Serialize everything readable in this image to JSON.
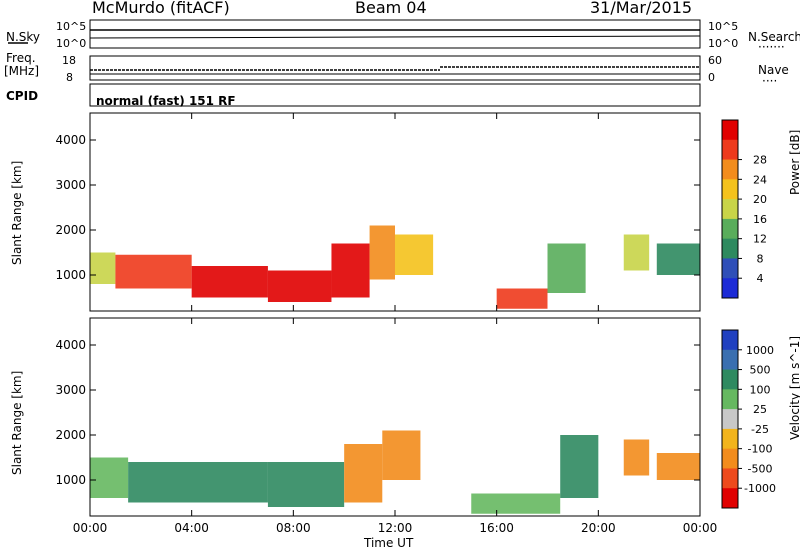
{
  "header": {
    "station": "McMurdo (fitACF)",
    "beam": "Beam 04",
    "date": "31/Mar/2015"
  },
  "status_panels": {
    "nsky_label": "N.Sky",
    "nsearch_label": "N.Search",
    "nsearch_dots": "·······",
    "freq_label": "Freq.",
    "freq_unit": "[MHz]",
    "nave_label": "Nave",
    "nave_dots": "····",
    "cpid_label": "CPID",
    "cpid_text": "normal (fast) 151 RF",
    "noise_ticks_left": [
      "10^5",
      "10^0"
    ],
    "noise_ticks_right": [
      "10^5",
      "10^0"
    ],
    "freq_ticks": [
      "18",
      "8"
    ],
    "nave_ticks": [
      "60",
      "0"
    ]
  },
  "chart_data": [
    {
      "type": "heatmap",
      "name": "power",
      "ylabel": "Slant Range [km]",
      "y_ticks": [
        "1000",
        "2000",
        "3000",
        "4000"
      ],
      "ylim": [
        200,
        4600
      ],
      "x_ticks": [
        "00:00",
        "04:00",
        "08:00",
        "12:00",
        "16:00",
        "20:00",
        "00:00"
      ],
      "xlim_hours": [
        0,
        24
      ],
      "colorbar_label": "Power [dB]",
      "colorbar_ticks": [
        "4",
        "8",
        "12",
        "16",
        "20",
        "24",
        "28"
      ],
      "colorbar_colors": [
        "#1c2bd6",
        "#2f4fb8",
        "#2e8a5f",
        "#59ad5b",
        "#c8d448",
        "#f4c21c",
        "#f28c1c",
        "#ee3a1c",
        "#e00000"
      ],
      "bands": [
        {
          "t0": 0,
          "t1": 1,
          "r0": 800,
          "r1": 1500,
          "level": 4
        },
        {
          "t0": 1,
          "t1": 4,
          "r0": 700,
          "r1": 1450,
          "level": 7
        },
        {
          "t0": 4,
          "t1": 7,
          "r0": 500,
          "r1": 1200,
          "level": 8
        },
        {
          "t0": 7,
          "t1": 9.5,
          "r0": 400,
          "r1": 1100,
          "level": 8
        },
        {
          "t0": 9.5,
          "t1": 11,
          "r0": 500,
          "r1": 1700,
          "level": 8
        },
        {
          "t0": 11,
          "t1": 12,
          "r0": 900,
          "r1": 2100,
          "level": 6
        },
        {
          "t0": 12,
          "t1": 13.5,
          "r0": 1000,
          "r1": 1900,
          "level": 5
        },
        {
          "t0": 16,
          "t1": 18,
          "r0": 250,
          "r1": 700,
          "level": 7
        },
        {
          "t0": 18,
          "t1": 19.5,
          "r0": 600,
          "r1": 1700,
          "level": 3
        },
        {
          "t0": 21,
          "t1": 22,
          "r0": 1100,
          "r1": 1900,
          "level": 4
        },
        {
          "t0": 22.3,
          "t1": 24,
          "r0": 1000,
          "r1": 1700,
          "level": 2
        }
      ]
    },
    {
      "type": "heatmap",
      "name": "velocity",
      "ylabel": "Slant Range [km]",
      "xlabel": "Time UT",
      "y_ticks": [
        "1000",
        "2000",
        "3000",
        "4000"
      ],
      "ylim": [
        200,
        4600
      ],
      "x_ticks": [
        "00:00",
        "04:00",
        "08:00",
        "12:00",
        "16:00",
        "20:00",
        "00:00"
      ],
      "xlim_hours": [
        0,
        24
      ],
      "colorbar_label": "Velocity [m s^-1]",
      "colorbar_ticks": [
        "1000",
        "500",
        "100",
        "25",
        "-25",
        "-100",
        "-500",
        "-1000"
      ],
      "colorbar_colors": [
        "#2040c0",
        "#3a6fb0",
        "#2f8a60",
        "#66b860",
        "#c8c8c8",
        "#f2b41c",
        "#f28c1c",
        "#ee4a1c",
        "#e00000"
      ],
      "bands": [
        {
          "t0": 0,
          "t1": 1.5,
          "r0": 600,
          "r1": 1500,
          "level": 3
        },
        {
          "t0": 1.5,
          "t1": 7,
          "r0": 500,
          "r1": 1400,
          "level": 2
        },
        {
          "t0": 7,
          "t1": 10,
          "r0": 400,
          "r1": 1400,
          "level": 2
        },
        {
          "t0": 10,
          "t1": 11.5,
          "r0": 500,
          "r1": 1800,
          "level": 6
        },
        {
          "t0": 11.5,
          "t1": 13,
          "r0": 1000,
          "r1": 2100,
          "level": 6
        },
        {
          "t0": 15,
          "t1": 18.5,
          "r0": 250,
          "r1": 700,
          "level": 3
        },
        {
          "t0": 18.5,
          "t1": 20,
          "r0": 600,
          "r1": 2000,
          "level": 2
        },
        {
          "t0": 21,
          "t1": 22,
          "r0": 1100,
          "r1": 1900,
          "level": 6
        },
        {
          "t0": 22.3,
          "t1": 24,
          "r0": 1000,
          "r1": 1600,
          "level": 6
        }
      ]
    }
  ]
}
